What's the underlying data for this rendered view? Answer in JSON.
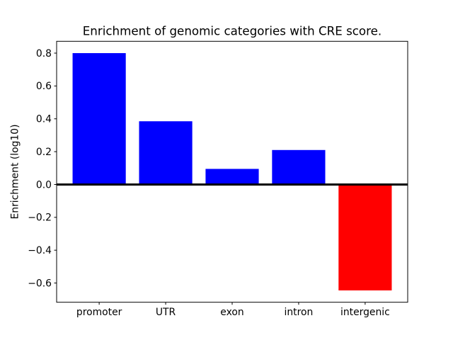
{
  "chart_data": {
    "type": "bar",
    "title": "Enrichment of genomic categories with CRE score.",
    "xlabel": "",
    "ylabel": "Enrichment (log10)",
    "categories": [
      "promoter",
      "UTR",
      "exon",
      "intron",
      "intergenic"
    ],
    "values": [
      0.8,
      0.385,
      0.095,
      0.21,
      -0.645
    ],
    "bar_colors": [
      "#0000ff",
      "#0000ff",
      "#0000ff",
      "#0000ff",
      "#ff0000"
    ],
    "positive_color": "#0000ff",
    "negative_color": "#ff0000",
    "bar_width": 0.8,
    "yticks": [
      0.8,
      0.6,
      0.4,
      0.2,
      0.0,
      -0.2,
      -0.4,
      -0.6
    ],
    "ylim": [
      -0.717,
      0.872
    ],
    "xlim": [
      -0.64,
      4.64
    ],
    "zero_line": {
      "y": 0,
      "color": "#000000",
      "thickness_px": 3
    },
    "grid": false,
    "legend": false,
    "background_color": "#ffffff",
    "frame_color": "#000000"
  }
}
